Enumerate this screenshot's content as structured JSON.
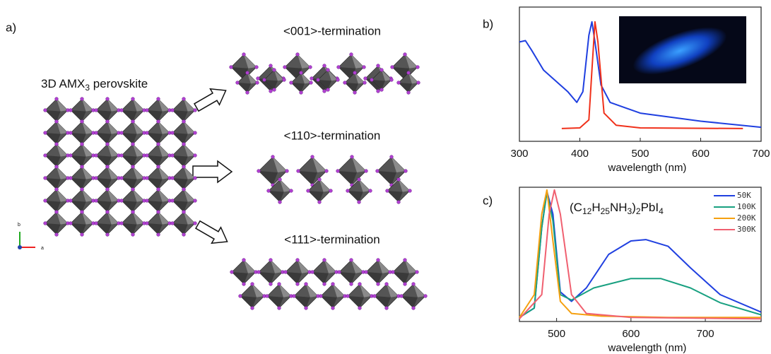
{
  "panel_a": {
    "label": "a)",
    "bulk_label": [
      "3D AMX",
      "3",
      " perovskite"
    ],
    "axis_b": "b",
    "axis_a": "a",
    "terminations": [
      "<001>-termination",
      "<110>-termination",
      "<111>-termination"
    ]
  },
  "chart_data": [
    {
      "type": "line",
      "label": "b)",
      "xlabel": "wavelength (nm)",
      "xlim": [
        300,
        700
      ],
      "xticks": [
        300,
        400,
        500,
        600,
        700
      ],
      "ylim": [
        0,
        1
      ],
      "series": [
        {
          "color": "#1f3fe0",
          "x": [
            300,
            310,
            320,
            340,
            360,
            380,
            395,
            405,
            415,
            420,
            425,
            435,
            450,
            500,
            600,
            700
          ],
          "values": [
            0.74,
            0.75,
            0.68,
            0.53,
            0.45,
            0.37,
            0.29,
            0.37,
            0.79,
            0.89,
            0.74,
            0.42,
            0.29,
            0.21,
            0.15,
            0.105
          ]
        },
        {
          "color": "#f0301a",
          "x": [
            370,
            400,
            415,
            420,
            425,
            430,
            440,
            460,
            500,
            670
          ],
          "values": [
            0.095,
            0.1,
            0.16,
            0.53,
            0.89,
            0.74,
            0.21,
            0.12,
            0.1,
            0.095
          ]
        }
      ]
    },
    {
      "type": "line",
      "label": "c)",
      "title_parts": [
        "(C",
        "12",
        "H",
        "25",
        "NH",
        "3",
        ")",
        "2",
        "PbI",
        "4"
      ],
      "xlabel": "wavelength (nm)",
      "xlim": [
        450,
        775
      ],
      "xticks": [
        500,
        600,
        700
      ],
      "ylim": [
        0,
        1
      ],
      "series": [
        {
          "name": "50K",
          "color": "#2040e0",
          "x": [
            450,
            470,
            480,
            487,
            495,
            505,
            520,
            540,
            570,
            600,
            620,
            650,
            680,
            720,
            775
          ],
          "values": [
            0.03,
            0.1,
            0.7,
            0.97,
            0.8,
            0.22,
            0.15,
            0.25,
            0.5,
            0.6,
            0.61,
            0.56,
            0.4,
            0.2,
            0.07
          ]
        },
        {
          "name": "100K",
          "color": "#18a080",
          "x": [
            450,
            470,
            480,
            487,
            495,
            505,
            520,
            550,
            600,
            640,
            680,
            720,
            775
          ],
          "values": [
            0.03,
            0.1,
            0.7,
            0.96,
            0.75,
            0.2,
            0.16,
            0.25,
            0.32,
            0.32,
            0.25,
            0.14,
            0.05
          ]
        },
        {
          "name": "200K",
          "color": "#f5a010",
          "x": [
            450,
            470,
            480,
            487,
            495,
            505,
            520,
            560,
            650,
            775
          ],
          "values": [
            0.03,
            0.2,
            0.8,
            0.98,
            0.6,
            0.15,
            0.06,
            0.04,
            0.03,
            0.03
          ]
        },
        {
          "name": "300K",
          "color": "#f06070",
          "x": [
            450,
            480,
            490,
            497,
            505,
            520,
            540,
            600,
            775
          ],
          "values": [
            0.02,
            0.2,
            0.8,
            0.98,
            0.8,
            0.2,
            0.06,
            0.03,
            0.02
          ]
        }
      ]
    }
  ]
}
